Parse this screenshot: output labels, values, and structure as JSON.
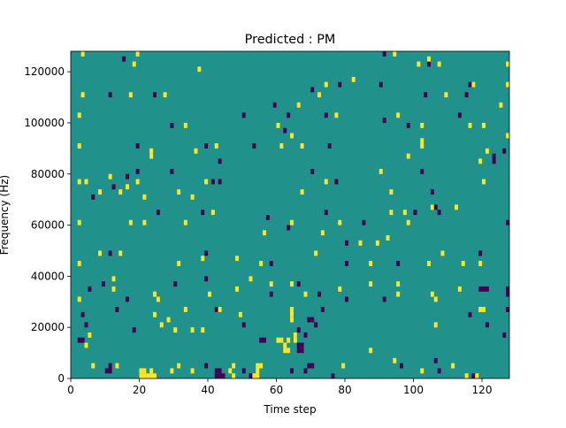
{
  "chart_data": {
    "type": "heatmap",
    "title": "Predicted : PM",
    "xlabel": "Time step",
    "ylabel": "Frequency (Hz)",
    "xlim": [
      0,
      128
    ],
    "ylim": [
      0,
      128000
    ],
    "xticks": [
      0,
      20,
      40,
      60,
      80,
      100,
      120
    ],
    "yticks": [
      0,
      20000,
      40000,
      60000,
      80000,
      100000,
      120000
    ],
    "grid": false,
    "legend": "none",
    "colors": {
      "low": "#440154",
      "mid": "#21918c",
      "high": "#fde725"
    },
    "value_levels": [
      -1,
      0,
      1
    ],
    "background_value": 0,
    "bin_height_hz": 2000,
    "cells": [
      [
        3,
        126,
        1
      ],
      [
        15,
        124,
        -1
      ],
      [
        18,
        122,
        1
      ],
      [
        19,
        126,
        1
      ],
      [
        37,
        120,
        1
      ],
      [
        91,
        126,
        -1
      ],
      [
        94,
        126,
        1
      ],
      [
        101,
        122,
        1
      ],
      [
        104,
        122,
        -1
      ],
      [
        104,
        124,
        1
      ],
      [
        107,
        122,
        1
      ],
      [
        127,
        122,
        1
      ],
      [
        3,
        110,
        1
      ],
      [
        11,
        110,
        -1
      ],
      [
        17,
        110,
        1
      ],
      [
        24,
        110,
        -1
      ],
      [
        27,
        110,
        1
      ],
      [
        70,
        112,
        -1
      ],
      [
        72,
        110,
        1
      ],
      [
        74,
        114,
        1
      ],
      [
        78,
        114,
        -1
      ],
      [
        82,
        116,
        1
      ],
      [
        90,
        114,
        -1
      ],
      [
        103,
        110,
        -1
      ],
      [
        109,
        110,
        1
      ],
      [
        115,
        110,
        -1
      ],
      [
        116,
        114,
        -1
      ],
      [
        117,
        114,
        1
      ],
      [
        125,
        106,
        1
      ],
      [
        127,
        114,
        1
      ],
      [
        2,
        102,
        1
      ],
      [
        29,
        98,
        -1
      ],
      [
        33,
        98,
        1
      ],
      [
        50,
        102,
        -1
      ],
      [
        59,
        106,
        -1
      ],
      [
        60,
        98,
        1
      ],
      [
        62,
        96,
        -1
      ],
      [
        63,
        102,
        -1
      ],
      [
        64,
        94,
        1
      ],
      [
        66,
        106,
        1
      ],
      [
        74,
        102,
        -1
      ],
      [
        77,
        102,
        1
      ],
      [
        91,
        100,
        -1
      ],
      [
        95,
        102,
        1
      ],
      [
        98,
        98,
        -1
      ],
      [
        102,
        98,
        1
      ],
      [
        113,
        102,
        -1
      ],
      [
        116,
        98,
        1
      ],
      [
        120,
        98,
        1
      ],
      [
        127,
        94,
        1
      ],
      [
        2,
        90,
        1
      ],
      [
        19,
        90,
        -1
      ],
      [
        23,
        86,
        1
      ],
      [
        23,
        88,
        1
      ],
      [
        36,
        88,
        1
      ],
      [
        39,
        90,
        -1
      ],
      [
        42,
        90,
        1
      ],
      [
        43,
        84,
        -1
      ],
      [
        53,
        90,
        -1
      ],
      [
        61,
        90,
        1
      ],
      [
        67,
        90,
        1
      ],
      [
        75,
        90,
        -1
      ],
      [
        98,
        86,
        1
      ],
      [
        102,
        90,
        1
      ],
      [
        102,
        92,
        1
      ],
      [
        119,
        84,
        1
      ],
      [
        121,
        88,
        1
      ],
      [
        123,
        86,
        -1
      ],
      [
        123,
        84,
        -1
      ],
      [
        126,
        88,
        -1
      ],
      [
        2,
        76,
        1
      ],
      [
        4,
        76,
        1
      ],
      [
        6,
        70,
        -1
      ],
      [
        8,
        72,
        1
      ],
      [
        11,
        78,
        1
      ],
      [
        12,
        74,
        -1
      ],
      [
        14,
        72,
        1
      ],
      [
        16,
        78,
        -1
      ],
      [
        16,
        74,
        1
      ],
      [
        19,
        80,
        -1
      ],
      [
        19,
        76,
        1
      ],
      [
        21,
        70,
        1
      ],
      [
        29,
        80,
        -1
      ],
      [
        31,
        72,
        1
      ],
      [
        35,
        70,
        1
      ],
      [
        39,
        76,
        1
      ],
      [
        41,
        76,
        -1
      ],
      [
        43,
        76,
        -1
      ],
      [
        70,
        80,
        -1
      ],
      [
        67,
        72,
        1
      ],
      [
        74,
        76,
        1
      ],
      [
        77,
        76,
        -1
      ],
      [
        90,
        80,
        1
      ],
      [
        93,
        72,
        1
      ],
      [
        102,
        80,
        -1
      ],
      [
        105,
        72,
        -1
      ],
      [
        120,
        76,
        1
      ],
      [
        2,
        60,
        1
      ],
      [
        17,
        60,
        1
      ],
      [
        21,
        60,
        1
      ],
      [
        25,
        64,
        -1
      ],
      [
        33,
        60,
        1
      ],
      [
        38,
        64,
        -1
      ],
      [
        41,
        64,
        1
      ],
      [
        56,
        56,
        1
      ],
      [
        57,
        62,
        -1
      ],
      [
        63,
        58,
        -1
      ],
      [
        64,
        60,
        1
      ],
      [
        73,
        56,
        1
      ],
      [
        74,
        64,
        -1
      ],
      [
        78,
        60,
        1
      ],
      [
        80,
        52,
        -1
      ],
      [
        84,
        52,
        1
      ],
      [
        85,
        60,
        -1
      ],
      [
        89,
        52,
        1
      ],
      [
        92,
        54,
        1
      ],
      [
        93,
        64,
        1
      ],
      [
        97,
        64,
        1
      ],
      [
        98,
        60,
        1
      ],
      [
        100,
        64,
        -1
      ],
      [
        105,
        66,
        1
      ],
      [
        106,
        66,
        -1
      ],
      [
        107,
        64,
        -1
      ],
      [
        112,
        66,
        1
      ],
      [
        127,
        60,
        -1
      ],
      [
        2,
        44,
        1
      ],
      [
        8,
        48,
        1
      ],
      [
        11,
        48,
        -1
      ],
      [
        14,
        48,
        1
      ],
      [
        31,
        44,
        1
      ],
      [
        39,
        48,
        -1
      ],
      [
        38,
        46,
        1
      ],
      [
        48,
        46,
        1
      ],
      [
        55,
        44,
        1
      ],
      [
        58,
        44,
        -1
      ],
      [
        71,
        48,
        1
      ],
      [
        80,
        44,
        -1
      ],
      [
        87,
        44,
        1
      ],
      [
        95,
        44,
        -1
      ],
      [
        104,
        44,
        1
      ],
      [
        108,
        48,
        1
      ],
      [
        114,
        44,
        1
      ],
      [
        119,
        48,
        -1
      ],
      [
        119,
        44,
        1
      ],
      [
        2,
        30,
        1
      ],
      [
        5,
        34,
        -1
      ],
      [
        9,
        36,
        -1
      ],
      [
        12,
        34,
        1
      ],
      [
        12,
        38,
        1
      ],
      [
        16,
        30,
        -1
      ],
      [
        24,
        32,
        1
      ],
      [
        25,
        30,
        1
      ],
      [
        30,
        36,
        -1
      ],
      [
        39,
        38,
        -1
      ],
      [
        40,
        32,
        1
      ],
      [
        48,
        34,
        1
      ],
      [
        52,
        38,
        1
      ],
      [
        58,
        32,
        -1
      ],
      [
        58,
        36,
        1
      ],
      [
        64,
        36,
        1
      ],
      [
        66,
        36,
        -1
      ],
      [
        68,
        32,
        1
      ],
      [
        72,
        32,
        -1
      ],
      [
        78,
        34,
        1
      ],
      [
        80,
        30,
        -1
      ],
      [
        87,
        36,
        1
      ],
      [
        91,
        30,
        -1
      ],
      [
        95,
        32,
        1
      ],
      [
        95,
        36,
        1
      ],
      [
        105,
        32,
        1
      ],
      [
        106,
        30,
        1
      ],
      [
        113,
        34,
        1
      ],
      [
        119,
        34,
        -1
      ],
      [
        120,
        34,
        -1
      ],
      [
        121,
        34,
        -1
      ],
      [
        127,
        32,
        -1
      ],
      [
        127,
        34,
        -1
      ],
      [
        3,
        24,
        -1
      ],
      [
        4,
        20,
        -1
      ],
      [
        5,
        16,
        1
      ],
      [
        13,
        26,
        -1
      ],
      [
        18,
        18,
        -1
      ],
      [
        24,
        24,
        1
      ],
      [
        26,
        20,
        1
      ],
      [
        28,
        22,
        1
      ],
      [
        30,
        18,
        1
      ],
      [
        33,
        26,
        1
      ],
      [
        35,
        18,
        1
      ],
      [
        38,
        18,
        1
      ],
      [
        42,
        26,
        -1
      ],
      [
        43,
        26,
        1
      ],
      [
        49,
        24,
        1
      ],
      [
        50,
        20,
        -1
      ],
      [
        64,
        26,
        1
      ],
      [
        64,
        24,
        1
      ],
      [
        64,
        22,
        1
      ],
      [
        65,
        16,
        1
      ],
      [
        65,
        14,
        1
      ],
      [
        66,
        18,
        -1
      ],
      [
        68,
        16,
        -1
      ],
      [
        69,
        22,
        -1
      ],
      [
        70,
        22,
        -1
      ],
      [
        71,
        20,
        -1
      ],
      [
        73,
        26,
        -1
      ],
      [
        106,
        20,
        1
      ],
      [
        116,
        24,
        -1
      ],
      [
        119,
        26,
        1
      ],
      [
        120,
        26,
        1
      ],
      [
        121,
        20,
        -1
      ],
      [
        127,
        26,
        -1
      ],
      [
        126,
        16,
        -1
      ],
      [
        2,
        14,
        -1
      ],
      [
        3,
        14,
        -1
      ],
      [
        4,
        12,
        1
      ],
      [
        6,
        4,
        1
      ],
      [
        10,
        2,
        -1
      ],
      [
        11,
        2,
        -1
      ],
      [
        11,
        4,
        -1
      ],
      [
        13,
        4,
        1
      ],
      [
        20,
        0,
        1
      ],
      [
        20,
        2,
        1
      ],
      [
        21,
        0,
        1
      ],
      [
        21,
        2,
        1
      ],
      [
        22,
        0,
        1
      ],
      [
        23,
        0,
        1
      ],
      [
        23,
        2,
        1
      ],
      [
        24,
        0,
        1
      ],
      [
        29,
        2,
        1
      ],
      [
        31,
        4,
        1
      ],
      [
        35,
        2,
        1
      ],
      [
        39,
        4,
        -1
      ],
      [
        42,
        0,
        -1
      ],
      [
        42,
        2,
        -1
      ],
      [
        43,
        0,
        -1
      ],
      [
        43,
        2,
        -1
      ],
      [
        44,
        0,
        -1
      ],
      [
        46,
        2,
        1
      ],
      [
        47,
        0,
        1
      ],
      [
        47,
        4,
        1
      ],
      [
        50,
        2,
        -1
      ],
      [
        52,
        0,
        -1
      ],
      [
        53,
        0,
        1
      ],
      [
        54,
        0,
        1
      ],
      [
        54,
        2,
        1
      ],
      [
        54,
        4,
        1
      ],
      [
        55,
        4,
        1
      ],
      [
        55,
        14,
        -1
      ],
      [
        56,
        14,
        -1
      ],
      [
        60,
        14,
        1
      ],
      [
        61,
        14,
        1
      ],
      [
        62,
        10,
        1
      ],
      [
        62,
        12,
        1
      ],
      [
        63,
        10,
        1
      ],
      [
        63,
        14,
        1
      ],
      [
        64,
        2,
        -1
      ],
      [
        66,
        10,
        -1
      ],
      [
        66,
        12,
        -1
      ],
      [
        67,
        10,
        -1
      ],
      [
        67,
        12,
        -1
      ],
      [
        68,
        2,
        -1
      ],
      [
        69,
        4,
        -1
      ],
      [
        70,
        4,
        -1
      ],
      [
        76,
        0,
        -1
      ],
      [
        79,
        4,
        1
      ],
      [
        87,
        10,
        1
      ],
      [
        94,
        6,
        1
      ],
      [
        96,
        4,
        -1
      ],
      [
        102,
        2,
        1
      ],
      [
        106,
        6,
        -1
      ],
      [
        107,
        2,
        -1
      ],
      [
        111,
        4,
        1
      ],
      [
        115,
        0,
        1
      ],
      [
        117,
        0,
        -1
      ],
      [
        118,
        0,
        1
      ]
    ]
  }
}
